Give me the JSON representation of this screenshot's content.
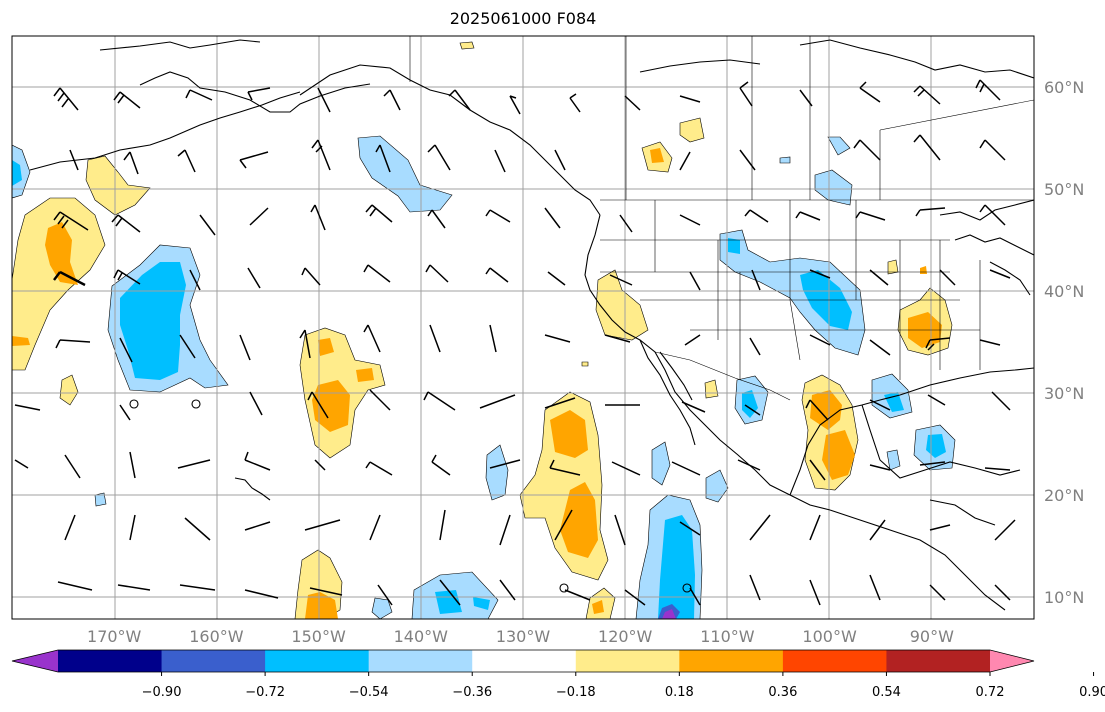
{
  "title": "2025061000 F084",
  "map": {
    "lon_range": [
      -180,
      -80
    ],
    "lat_range": [
      8,
      65
    ],
    "gridlines": true,
    "lon_ticks": [
      {
        "lon": -170,
        "label": "170°W"
      },
      {
        "lon": -160,
        "label": "160°W"
      },
      {
        "lon": -150,
        "label": "150°W"
      },
      {
        "lon": -140,
        "label": "140°W"
      },
      {
        "lon": -130,
        "label": "130°W"
      },
      {
        "lon": -120,
        "label": "120°W"
      },
      {
        "lon": -110,
        "label": "110°W"
      },
      {
        "lon": -100,
        "label": "100°W"
      },
      {
        "lon": -90,
        "label": "90°W"
      }
    ],
    "lat_ticks": [
      {
        "lat": 60,
        "label": "60°N"
      },
      {
        "lat": 50,
        "label": "50°N"
      },
      {
        "lat": 40,
        "label": "40°N"
      },
      {
        "lat": 30,
        "label": "30°N"
      },
      {
        "lat": 20,
        "label": "20°N"
      },
      {
        "lat": 10,
        "label": "10°N"
      }
    ],
    "fill_colors": {
      "neg_090": "#9933cc",
      "neg_072": "#00008b",
      "neg_054": "#3a5fcd",
      "neg_036": "#00bfff",
      "neg_018": "#a8dcff",
      "pos_018": "#ffec8b",
      "pos_036": "#ffa500",
      "pos_054": "#ff4500",
      "pos_072": "#b22222",
      "pos_090": "#ff88b0"
    }
  },
  "colorbar": {
    "colors": [
      "#9933cc",
      "#00008b",
      "#3a5fcd",
      "#00bfff",
      "#a8dcff",
      "#ffffff",
      "#ffec8b",
      "#ffa500",
      "#ff4500",
      "#b22222",
      "#ff88b0"
    ],
    "labels": [
      "−0.90",
      "−0.72",
      "−0.54",
      "−0.36",
      "−0.18",
      "0.18",
      "0.36",
      "0.54",
      "0.72",
      "0.90"
    ]
  }
}
